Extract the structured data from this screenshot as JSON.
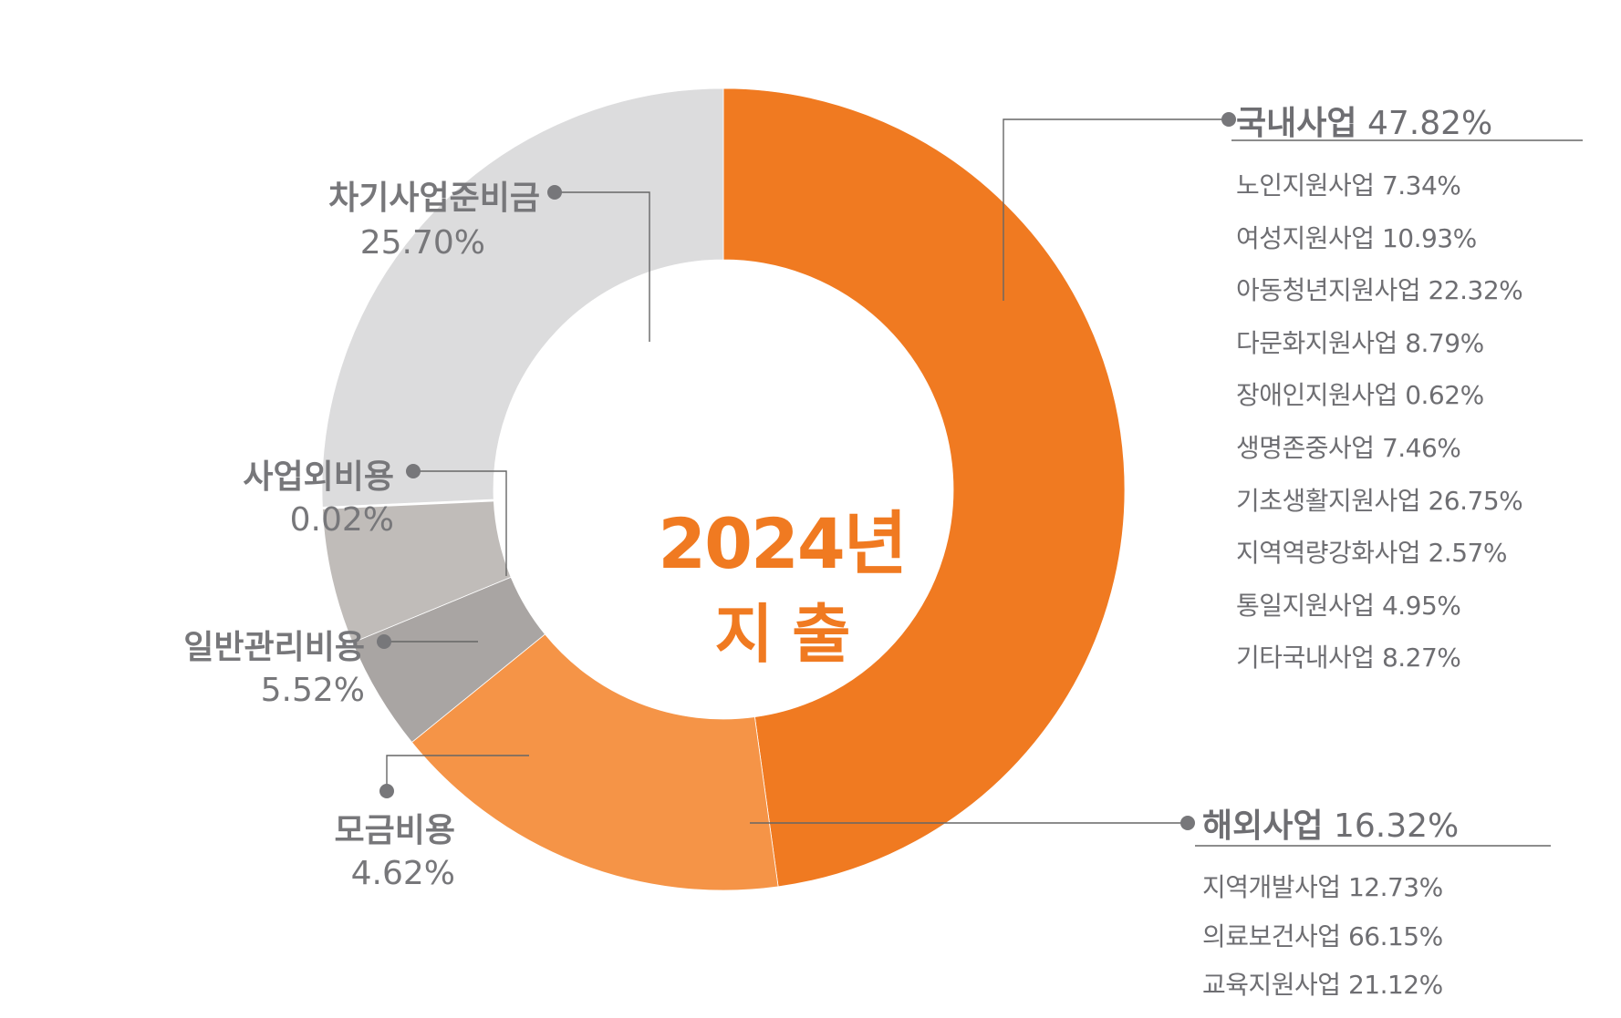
{
  "center": {
    "line1": "2024년",
    "line2": "지 출"
  },
  "chart_data": {
    "type": "pie",
    "title": "",
    "start": "top, clockwise",
    "slices": [
      {
        "name": "국내사업",
        "value": 47.82,
        "color": "#f07a21"
      },
      {
        "name": "해외사업",
        "value": 16.32,
        "color": "#f59447"
      },
      {
        "name": "모금비용",
        "value": 4.62,
        "color": "#a9a5a3"
      },
      {
        "name": "일반관리비용",
        "value": 5.52,
        "color": "#c0bcb9"
      },
      {
        "name": "사업외비용",
        "value": 0.02,
        "color": "#ffffff"
      },
      {
        "name": "차기사업준비금",
        "value": 25.7,
        "color": "#dcdcdd"
      }
    ]
  },
  "labels": {
    "domestic": {
      "name": "국내사업",
      "value": "47.82%"
    },
    "overseas": {
      "name": "해외사업",
      "value": "16.32%"
    },
    "fundraising": {
      "name": "모금비용",
      "value": "4.62%"
    },
    "general_admin": {
      "name": "일반관리비용",
      "value": "5.52%"
    },
    "non_business": {
      "name": "사업외비용",
      "value": "0.02%"
    },
    "reserve": {
      "name": "차기사업준비금",
      "value": "25.70%"
    }
  },
  "domestic_details": [
    "노인지원사업 7.34%",
    "여성지원사업 10.93%",
    "아동청년지원사업 22.32%",
    "다문화지원사업 8.79%",
    "장애인지원사업 0.62%",
    "생명존중사업 7.46%",
    "기초생활지원사업 26.75%",
    "지역역량강화사업 2.57%",
    "통일지원사업 4.95%",
    "기타국내사업 8.27%"
  ],
  "overseas_details": [
    "지역개발사업 12.73%",
    "의료보건사업 66.15%",
    "교육지원사업 21.12%"
  ],
  "colors": {
    "accent": "#f07a21",
    "text": "#77777a",
    "leader": "#666666"
  }
}
